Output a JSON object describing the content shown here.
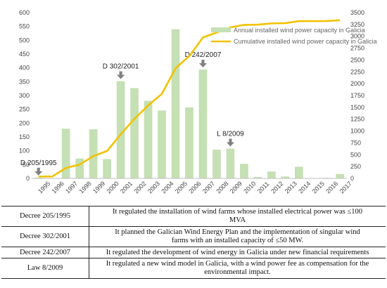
{
  "chart_data": {
    "type": "bar+line",
    "categories": [
      "1995",
      "1996",
      "1997",
      "1998",
      "1999",
      "2000",
      "2001",
      "2002",
      "2003",
      "2004",
      "2005",
      "2006",
      "2007",
      "2008",
      "2009",
      "2010",
      "2011",
      "2012",
      "2013",
      "2014",
      "2015",
      "2016",
      "2017"
    ],
    "series": [
      {
        "name": "Annual installed wind power capacity in Galicia",
        "type": "bar",
        "axis": "left",
        "color": "#c5e0b4",
        "values": [
          3,
          0,
          180,
          72,
          178,
          70,
          352,
          327,
          281,
          246,
          540,
          257,
          394,
          104,
          108,
          53,
          5,
          25,
          7,
          42,
          0,
          2,
          16
        ]
      },
      {
        "name": "Cumulative installed wind power capacity in Galicia",
        "type": "line",
        "axis": "right",
        "color": "#f2c200",
        "values": [
          40,
          40,
          220,
          292,
          470,
          580,
          932,
          1259,
          1540,
          1786,
          2326,
          2583,
          2977,
          3081,
          3189,
          3242,
          3247,
          3272,
          3279,
          3321,
          3321,
          3323,
          3339
        ]
      }
    ],
    "yleft": {
      "lim": [
        0,
        600
      ],
      "ticks": [
        "0",
        "50",
        "100",
        "150",
        "200",
        "250",
        "300",
        "350",
        "400",
        "450",
        "500",
        "550",
        "600"
      ]
    },
    "yright": {
      "lim": [
        0,
        3500
      ],
      "ticks": [
        "0",
        "250",
        "500",
        "750",
        "1000",
        "1250",
        "1500",
        "1750",
        "2000",
        "2250",
        "2500",
        "2750",
        "3000",
        "3250",
        "3500"
      ]
    },
    "annotations": [
      {
        "text": "D 205/1995",
        "category": "1995"
      },
      {
        "text": "D 302/2001",
        "category": "2001"
      },
      {
        "text": "D 242/2007",
        "category": "2007"
      },
      {
        "text": "L 8/2009",
        "category": "2009"
      }
    ],
    "grid": false,
    "legend_position": "upper-right"
  },
  "table": {
    "rows": [
      {
        "law": "Decree 205/1995",
        "desc_lines": [
          "It regulated the installation of wind farms whose installed electrical power was ≤100",
          "MVA"
        ]
      },
      {
        "law": "Decree 302/2001",
        "desc_lines": [
          "It planned the Galician Wind Energy Plan and the implementation of singular wind",
          "farms with an installed capacity of ≤50 MW."
        ]
      },
      {
        "law": "Decree 242/2007",
        "desc_lines": [
          "It regulated the development of wind energy in Galicia under new financial requirements"
        ]
      },
      {
        "law": "Law 8/2009",
        "desc_lines": [
          "It regulated a new wind model in Galicia, with a wind power fee as compensation for the",
          "environmental impact."
        ]
      }
    ]
  }
}
